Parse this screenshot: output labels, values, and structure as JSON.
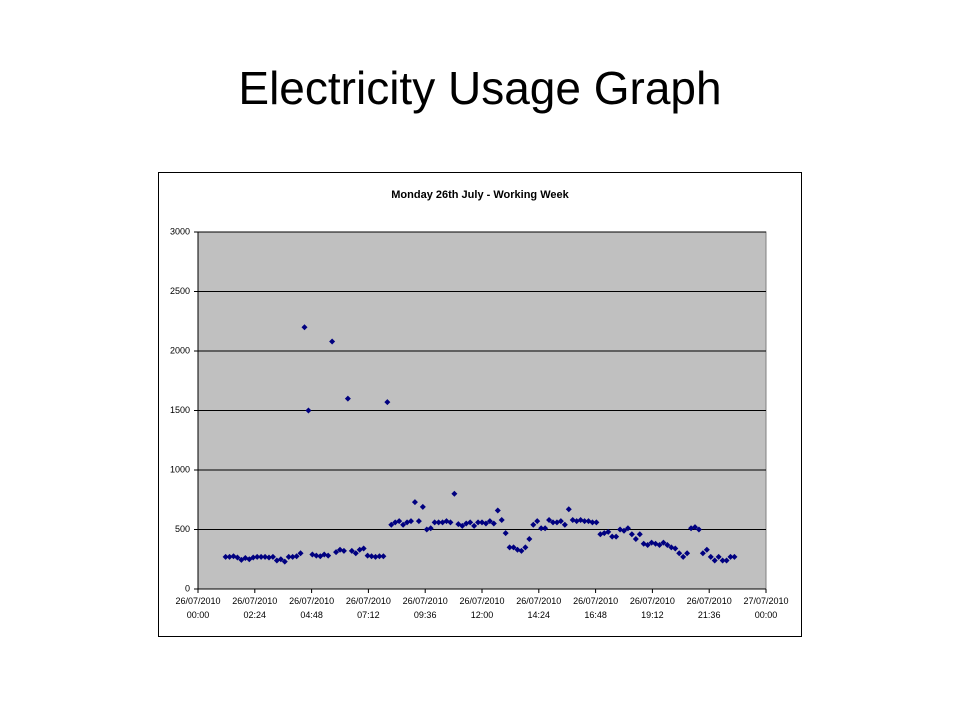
{
  "slide_title": "Electricity Usage Graph",
  "chart_data": {
    "type": "scatter",
    "title": "Monday 26th July - Working Week",
    "series": [
      {
        "color": "#000080",
        "x": [
          70,
          80,
          90,
          100,
          110,
          120,
          130,
          140,
          150,
          160,
          170,
          180,
          190,
          200,
          210,
          220,
          230,
          240,
          250,
          260,
          270,
          280,
          290,
          300,
          310,
          320,
          330,
          340,
          350,
          360,
          370,
          380,
          390,
          400,
          410,
          420,
          430,
          440,
          450,
          460,
          470,
          480,
          490,
          500,
          510,
          520,
          530,
          540,
          550,
          560,
          570,
          580,
          590,
          600,
          610,
          620,
          630,
          640,
          650,
          660,
          670,
          680,
          690,
          700,
          710,
          720,
          730,
          740,
          750,
          760,
          770,
          780,
          790,
          800,
          810,
          820,
          830,
          840,
          850,
          860,
          870,
          880,
          890,
          900,
          910,
          920,
          930,
          940,
          950,
          960,
          970,
          980,
          990,
          1000,
          1010,
          1020,
          1030,
          1040,
          1050,
          1060,
          1070,
          1080,
          1090,
          1100,
          1110,
          1120,
          1130,
          1140,
          1150,
          1160,
          1170,
          1180,
          1190,
          1200,
          1210,
          1220,
          1230,
          1240,
          1250,
          1260,
          1270,
          1280,
          1290,
          1300,
          1310,
          1320,
          1330,
          1340,
          1350,
          1360
        ],
        "values": [
          270,
          270,
          275,
          265,
          245,
          260,
          250,
          265,
          270,
          270,
          270,
          265,
          270,
          240,
          250,
          230,
          270,
          270,
          275,
          300,
          2200,
          1500,
          290,
          280,
          275,
          290,
          280,
          2080,
          310,
          330,
          320,
          1600,
          320,
          300,
          330,
          340,
          280,
          275,
          270,
          275,
          275,
          1570,
          540,
          560,
          570,
          540,
          560,
          570,
          730,
          570,
          690,
          500,
          510,
          560,
          560,
          560,
          570,
          560,
          800,
          545,
          530,
          550,
          560,
          530,
          560,
          560,
          550,
          570,
          550,
          660,
          580,
          470,
          350,
          350,
          330,
          320,
          350,
          420,
          540,
          570,
          510,
          510,
          580,
          560,
          560,
          570,
          540,
          670,
          580,
          570,
          580,
          570,
          570,
          560,
          560,
          460,
          470,
          480,
          440,
          440,
          500,
          490,
          510,
          460,
          420,
          460,
          380,
          370,
          390,
          380,
          370,
          390,
          370,
          350,
          340,
          300,
          270,
          300,
          510,
          520,
          500,
          300,
          330,
          270,
          240,
          270,
          240,
          240,
          270,
          270
        ]
      }
    ],
    "xlim": [
      0,
      1440
    ],
    "xticks": [
      {
        "value": 0,
        "label": "26/07/2010 00:00"
      },
      {
        "value": 144,
        "label": "26/07/2010 02:24"
      },
      {
        "value": 288,
        "label": "26/07/2010 04:48"
      },
      {
        "value": 432,
        "label": "26/07/2010 07:12"
      },
      {
        "value": 576,
        "label": "26/07/2010 09:36"
      },
      {
        "value": 720,
        "label": "26/07/2010 12:00"
      },
      {
        "value": 864,
        "label": "26/07/2010 14:24"
      },
      {
        "value": 1008,
        "label": "26/07/2010 16:48"
      },
      {
        "value": 1152,
        "label": "26/07/2010 19:12"
      },
      {
        "value": 1296,
        "label": "26/07/2010 21:36"
      },
      {
        "value": 1440,
        "label": "27/07/2010 00:00"
      }
    ],
    "ylim": [
      0,
      3000
    ],
    "yticks": [
      0,
      500,
      1000,
      1500,
      2000,
      2500,
      3000
    ],
    "grid": true
  }
}
